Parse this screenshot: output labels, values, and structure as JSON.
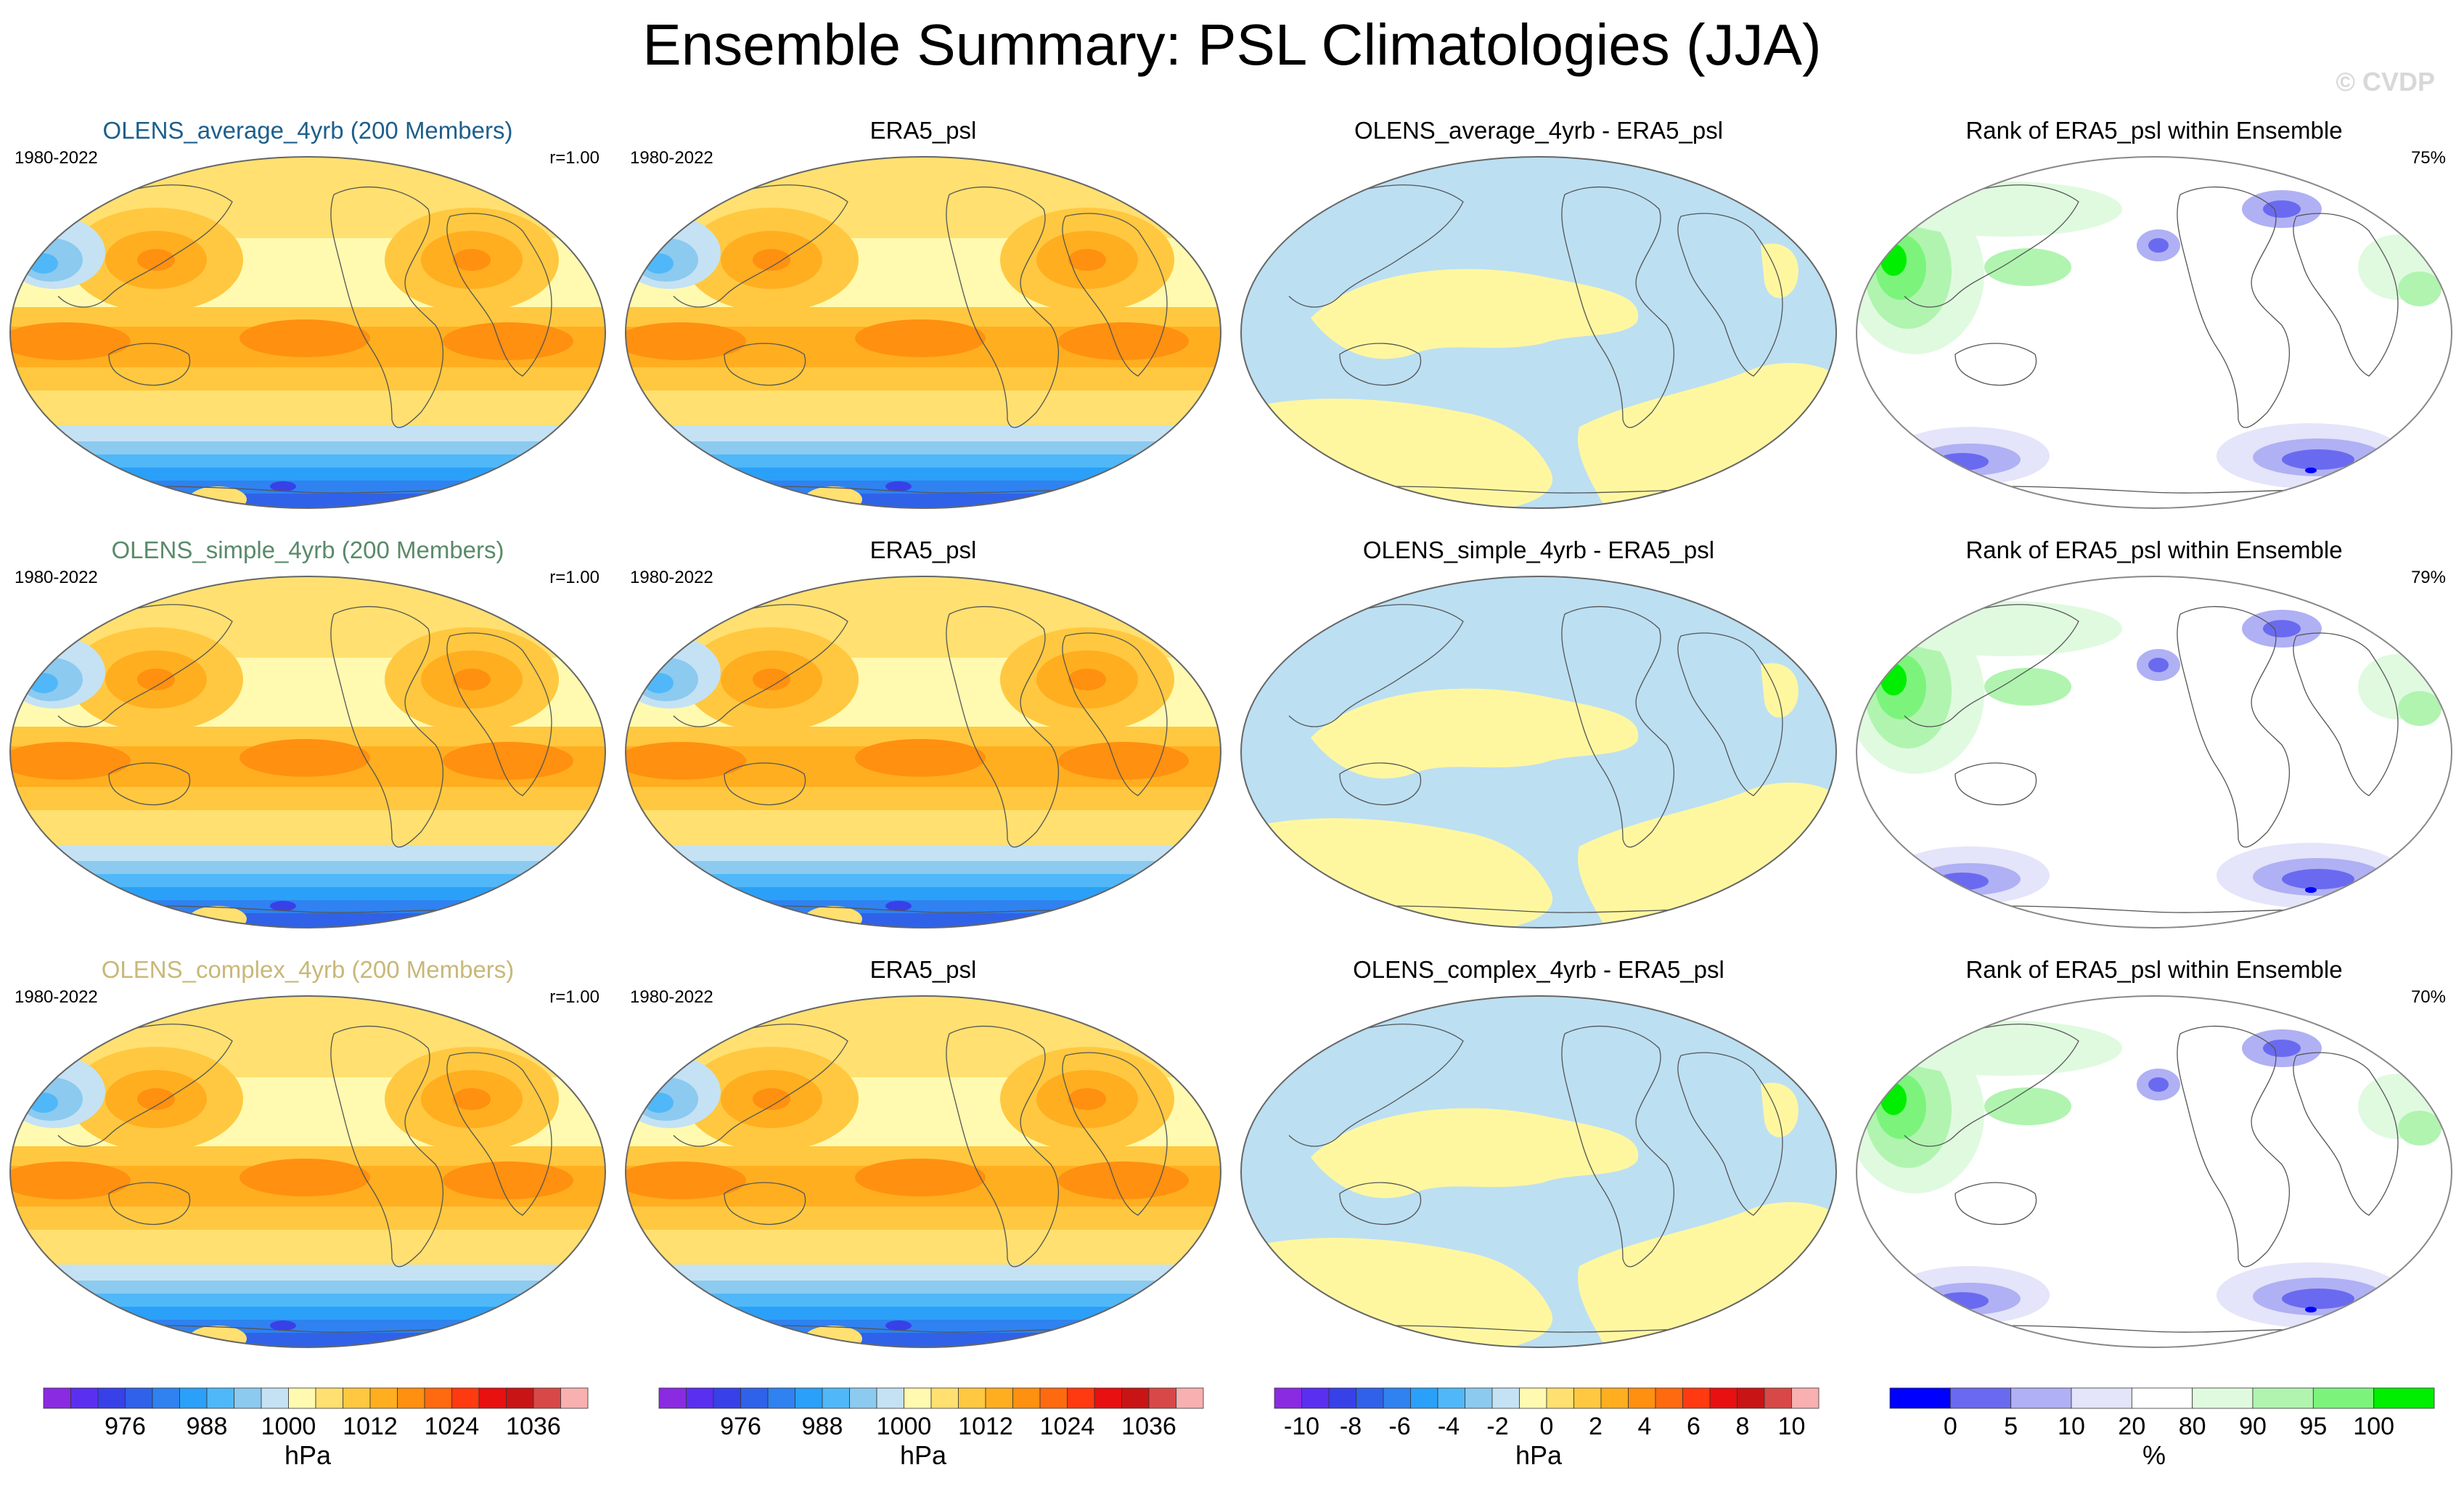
{
  "title": "Ensemble Summary: PSL Climatologies (JJA)",
  "credit": "© CVDP",
  "colors": {
    "title_average": "#1e5f8c",
    "title_simple": "#5a8a6a",
    "title_complex": "#c8b878",
    "diff_positive": "#fff7a0",
    "diff_negative": "#bcdff2"
  },
  "rows": [
    {
      "panels": [
        {
          "title": "OLENS_average_4yrb (200 Members)",
          "years": "1980-2022",
          "stat": "r=1.00"
        },
        {
          "title": "ERA5_psl",
          "years": "1980-2022",
          "stat": ""
        },
        {
          "title": "OLENS_average_4yrb - ERA5_psl",
          "years": "",
          "stat": ""
        },
        {
          "title": "Rank of ERA5_psl within Ensemble",
          "years": "",
          "stat": "75%"
        }
      ]
    },
    {
      "panels": [
        {
          "title": "OLENS_simple_4yrb (200 Members)",
          "years": "1980-2022",
          "stat": "r=1.00"
        },
        {
          "title": "ERA5_psl",
          "years": "1980-2022",
          "stat": ""
        },
        {
          "title": "OLENS_simple_4yrb - ERA5_psl",
          "years": "",
          "stat": ""
        },
        {
          "title": "Rank of ERA5_psl within Ensemble",
          "years": "",
          "stat": "79%"
        }
      ]
    },
    {
      "panels": [
        {
          "title": "OLENS_complex_4yrb (200 Members)",
          "years": "1980-2022",
          "stat": "r=1.00"
        },
        {
          "title": "ERA5_psl",
          "years": "1980-2022",
          "stat": ""
        },
        {
          "title": "OLENS_complex_4yrb - ERA5_psl",
          "years": "",
          "stat": ""
        },
        {
          "title": "Rank of ERA5_psl within Ensemble",
          "years": "",
          "stat": "70%"
        }
      ]
    }
  ],
  "colorbars": [
    {
      "unit": "hPa",
      "ticks": [
        "976",
        "988",
        "1000",
        "1012",
        "1024",
        "1036"
      ],
      "colors": [
        "#8a2be2",
        "#5b2ff0",
        "#3840e8",
        "#2f62e8",
        "#2f82f0",
        "#2ba0f8",
        "#50b8f8",
        "#8ccaf0",
        "#c4e2f4",
        "#fffab0",
        "#ffe070",
        "#ffc840",
        "#ffae20",
        "#ff9010",
        "#ff6a10",
        "#ff3a10",
        "#e81010",
        "#c81414",
        "#d84848",
        "#f8b0b0"
      ]
    },
    {
      "unit": "hPa",
      "ticks": [
        "976",
        "988",
        "1000",
        "1012",
        "1024",
        "1036"
      ],
      "colors": [
        "#8a2be2",
        "#5b2ff0",
        "#3840e8",
        "#2f62e8",
        "#2f82f0",
        "#2ba0f8",
        "#50b8f8",
        "#8ccaf0",
        "#c4e2f4",
        "#fffab0",
        "#ffe070",
        "#ffc840",
        "#ffae20",
        "#ff9010",
        "#ff6a10",
        "#ff3a10",
        "#e81010",
        "#c81414",
        "#d84848",
        "#f8b0b0"
      ]
    },
    {
      "unit": "hPa",
      "ticks": [
        "-10",
        "-8",
        "-6",
        "-4",
        "-2",
        "0",
        "2",
        "4",
        "6",
        "8",
        "10"
      ],
      "colors": [
        "#8a2be2",
        "#5b2ff0",
        "#3840e8",
        "#2f62e8",
        "#2f82f0",
        "#2ba0f8",
        "#50b8f8",
        "#8ccaf0",
        "#c4e2f4",
        "#fffab0",
        "#ffe070",
        "#ffc840",
        "#ffae20",
        "#ff9010",
        "#ff6a10",
        "#ff3a10",
        "#e81010",
        "#c81414",
        "#d84848",
        "#f8b0b0"
      ]
    },
    {
      "unit": "%",
      "ticks": [
        "0",
        "5",
        "10",
        "20",
        "80",
        "90",
        "95",
        "100"
      ],
      "colors": [
        "#0000ff",
        "#6a6af0",
        "#b0b0f4",
        "#e4e4fa",
        "#ffffff",
        "#e0fae0",
        "#b0f4b0",
        "#7cf47c",
        "#00ee00"
      ]
    }
  ]
}
